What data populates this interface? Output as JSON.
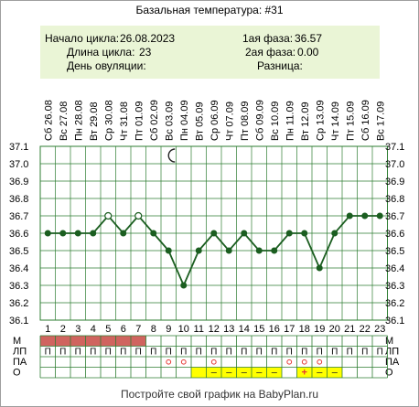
{
  "title": "Базальная температура: #31",
  "footer": "Постройте свой график на BabyPlan.ru",
  "info": {
    "cycle_start_label": "Начало цикла:",
    "cycle_start_value": "26.08.2023",
    "cycle_length_label": "Длина цикла:",
    "cycle_length_value": "23",
    "ovulation_label": "День овуляции:",
    "ovulation_value": "",
    "phase1_label": "1ая фаза:",
    "phase1_value": "36.57",
    "phase2_label": "2ая фаза:",
    "phase2_value": "0.00",
    "diff_label": "Разница:",
    "diff_value": ""
  },
  "row_labels": [
    "М",
    "ЛП",
    "ПА",
    "О"
  ],
  "colors": {
    "info_bg": "#eaf5d6",
    "grid": "#2e7d32",
    "line": "#1b5e20",
    "menses": "#d0645f",
    "highlight": "#ffff00",
    "circle_mark": "#e53935",
    "plus_mark": "#e53935",
    "dash_mark": "#222222"
  },
  "chart_data": {
    "type": "line",
    "title": "Базальная температура: #31",
    "x": [
      1,
      2,
      3,
      4,
      5,
      6,
      7,
      8,
      9,
      10,
      11,
      12,
      13,
      14,
      15,
      16,
      17,
      18,
      19,
      20,
      21,
      22,
      23
    ],
    "dates": [
      "Сб 26.08",
      "Вс 27.08",
      "Пн 28.08",
      "Вт 29.08",
      "Ср 30.08",
      "Чт 31.08",
      "Пт 01.09",
      "Сб 02.09",
      "Вс 03.09",
      "Пн 04.09",
      "Вт 05.09",
      "Ср 06.09",
      "Чт 07.09",
      "Пт 08.09",
      "Сб 09.09",
      "Вс 10.09",
      "Пн 11.09",
      "Вт 12.09",
      "Ср 13.09",
      "Чт 14.09",
      "Пт 15.09",
      "Сб 16.09",
      "Вс 17.09"
    ],
    "series": [
      {
        "values": [
          36.6,
          36.6,
          36.6,
          36.6,
          36.7,
          36.6,
          36.7,
          36.6,
          36.5,
          36.3,
          36.5,
          36.6,
          36.5,
          36.6,
          36.5,
          36.5,
          36.6,
          36.6,
          36.4,
          36.6,
          36.7,
          36.7,
          36.7
        ]
      }
    ],
    "open_points": [
      5,
      7
    ],
    "yticks": [
      "37.1",
      "37.0",
      "36.9",
      "36.8",
      "36.7",
      "36.6",
      "36.5",
      "36.4",
      "36.3",
      "36.2",
      "36.1"
    ],
    "ylim": [
      36.1,
      37.1
    ],
    "night_icon_day": 9,
    "grid": true,
    "rows": {
      "M": [
        1,
        1,
        1,
        1,
        1,
        1,
        1,
        0,
        0,
        0,
        0,
        0,
        0,
        0,
        0,
        0,
        0,
        0,
        0,
        0,
        0,
        0,
        0
      ],
      "LP": [
        "П",
        "П",
        "П",
        "П",
        "П",
        "П",
        "П",
        "П",
        "П",
        "П",
        "П",
        "П",
        "П",
        "П",
        "П",
        "П",
        "П",
        "П",
        "П",
        "П",
        "П",
        "П",
        "П"
      ],
      "PA": [
        "",
        "",
        "",
        "",
        "",
        "",
        "",
        "",
        "o",
        "o",
        "",
        "o",
        "",
        "",
        "",
        "",
        "o",
        "o",
        "o",
        "",
        "",
        "",
        ""
      ],
      "O": [
        "",
        "",
        "",
        "",
        "",
        "",
        "",
        "",
        "",
        "",
        "",
        "–",
        "–",
        "–",
        "–",
        "–",
        "",
        "+",
        "–",
        "–",
        "",
        "",
        ""
      ],
      "O_highlight": [
        0,
        0,
        0,
        0,
        0,
        0,
        0,
        0,
        0,
        0,
        1,
        1,
        1,
        1,
        1,
        1,
        0,
        1,
        1,
        1,
        0,
        0,
        0
      ]
    }
  }
}
